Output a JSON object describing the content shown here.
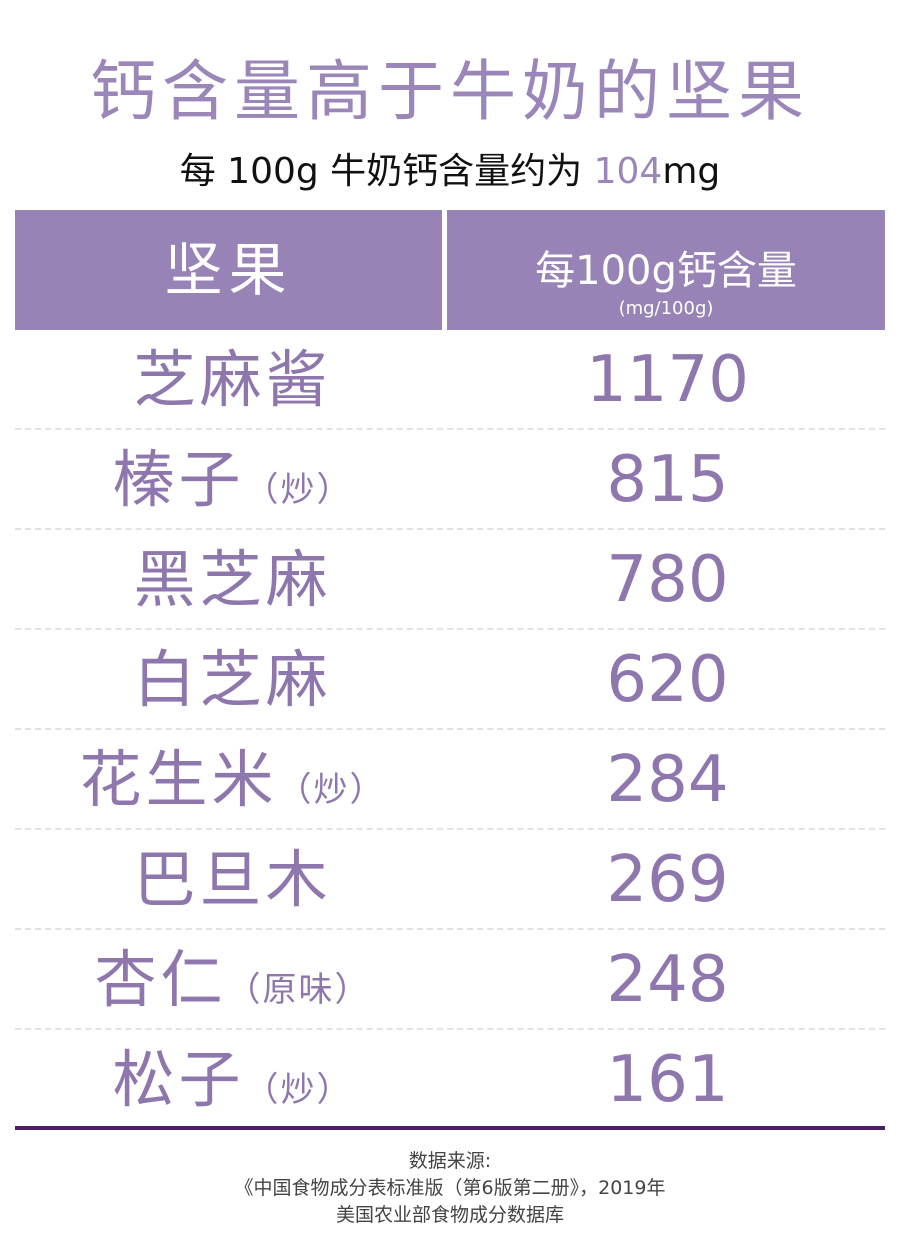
{
  "title": "钙含量高于牛奶的坚果",
  "subtitle": {
    "prefix": "每 100g 牛奶钙含量约为 ",
    "value": "104",
    "unit": "mg"
  },
  "header": {
    "col1": "坚果",
    "col2": "每100g钙含量",
    "col2_unit": "(mg/100g)"
  },
  "rows": [
    {
      "name": "芝麻酱",
      "note": "",
      "value": "1170"
    },
    {
      "name": "榛子",
      "note": "（炒）",
      "value": "815"
    },
    {
      "name": "黑芝麻",
      "note": "",
      "value": "780"
    },
    {
      "name": "白芝麻",
      "note": "",
      "value": "620"
    },
    {
      "name": "花生米",
      "note": "（炒）",
      "value": "284"
    },
    {
      "name": "巴旦木",
      "note": "",
      "value": "269"
    },
    {
      "name": "杏仁",
      "note": "（原味）",
      "value": "248"
    },
    {
      "name": "松子",
      "note": "（炒）",
      "value": "161"
    }
  ],
  "footer": {
    "label": "数据来源:",
    "source1": "《中国食物成分表标准版（第6版第二册》，2019年",
    "source2": "美国农业部食物成分数据库"
  },
  "colors": {
    "accent": "#9a86b9",
    "header_bg": "#9883b6",
    "bottom_rule": "#4b1d68"
  }
}
